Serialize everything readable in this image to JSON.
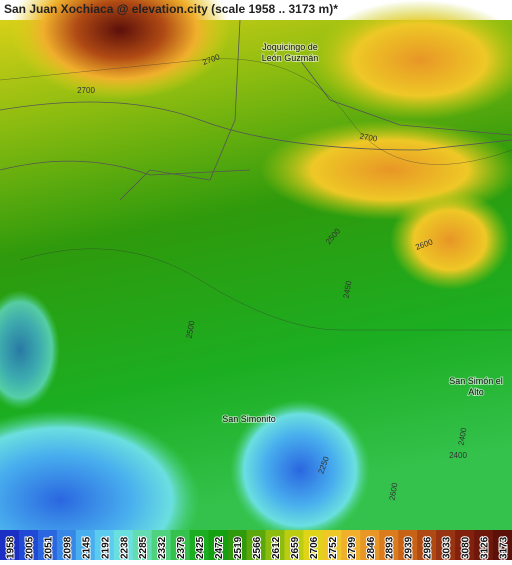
{
  "header": {
    "title": "San Juan Xochiaca @ elevation.city (scale 1958 .. 3173 m)*"
  },
  "places": [
    {
      "lines": [
        "Joquicingo de",
        "León Guzmán"
      ]
    },
    {
      "lines": [
        "San Simonito"
      ]
    },
    {
      "lines": [
        "San Simón el",
        "Alto"
      ]
    }
  ],
  "contours": [
    "2700",
    "2700",
    "2700",
    "2500",
    "2600",
    "2450",
    "2500",
    "2400",
    "2400",
    "2250",
    "2600"
  ],
  "legend": {
    "values": [
      1958,
      2005,
      2051,
      2098,
      2145,
      2192,
      2238,
      2285,
      2332,
      2379,
      2425,
      2472,
      2519,
      2566,
      2612,
      2659,
      2706,
      2752,
      2799,
      2846,
      2893,
      2939,
      2986,
      3033,
      3080,
      3126,
      3173
    ],
    "colors": [
      "#1b2fc4",
      "#2049d6",
      "#2a66e0",
      "#3788e6",
      "#48aeee",
      "#5ccbf0",
      "#6adfe0",
      "#62dcb0",
      "#4ed27e",
      "#34c24c",
      "#1cae22",
      "#14a010",
      "#2e9a0c",
      "#5aa80c",
      "#8cbc10",
      "#bccc10",
      "#e0d418",
      "#eec826",
      "#f0b02c",
      "#e89626",
      "#da7c1e",
      "#c86216",
      "#b04a14",
      "#983412",
      "#82220e",
      "#6e180c",
      "#5c100a"
    ]
  }
}
